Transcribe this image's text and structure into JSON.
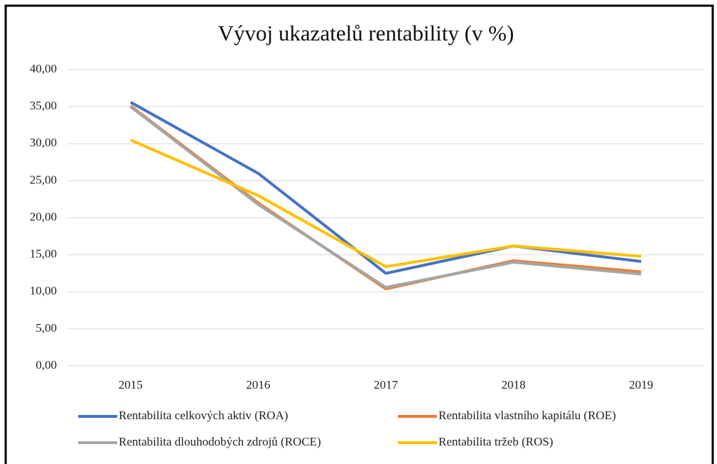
{
  "chart_data": {
    "type": "line",
    "title": "Vývoj ukazatelů rentability (v %)",
    "categories": [
      "2015",
      "2016",
      "2017",
      "2018",
      "2019"
    ],
    "series": [
      {
        "name": "Rentabilita celkových aktiv (ROA)",
        "color": "#4472c4",
        "values": [
          35.6,
          26.0,
          12.5,
          16.2,
          14.1
        ]
      },
      {
        "name": "Rentabilita vlastního kapitálu (ROE)",
        "color": "#ed7d31",
        "values": [
          35.1,
          22.0,
          10.4,
          14.2,
          12.7
        ]
      },
      {
        "name": "Rentabilita dlouhodobých zdrojů (ROCE)",
        "color": "#a5a5a5",
        "values": [
          35.0,
          21.8,
          10.6,
          14.0,
          12.4
        ]
      },
      {
        "name": "Rentabilita tržeb (ROS)",
        "color": "#ffc000",
        "values": [
          30.5,
          23.0,
          13.4,
          16.2,
          14.8
        ]
      }
    ],
    "ylim": [
      0,
      40
    ],
    "yticks": [
      {
        "value": 0,
        "label": "0,00"
      },
      {
        "value": 5,
        "label": "5,00"
      },
      {
        "value": 10,
        "label": "10,00"
      },
      {
        "value": 15,
        "label": "15,00"
      },
      {
        "value": 20,
        "label": "20,00"
      },
      {
        "value": 25,
        "label": "25,00"
      },
      {
        "value": 30,
        "label": "30,00"
      },
      {
        "value": 35,
        "label": "35,00"
      },
      {
        "value": 40,
        "label": "40,00"
      }
    ],
    "grid": true,
    "legend": "bottom"
  }
}
